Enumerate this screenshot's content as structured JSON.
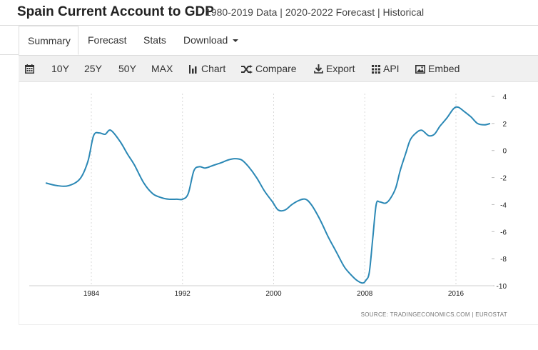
{
  "header": {
    "title": "Spain Current Account to GDP",
    "subtitle": "1980-2019 Data | 2020-2022 Forecast | Historical"
  },
  "tabs": [
    {
      "label": "Summary",
      "active": true
    },
    {
      "label": "Forecast"
    },
    {
      "label": "Stats"
    },
    {
      "label": "Download"
    }
  ],
  "toolbar": {
    "calendar_icon": "calendar-icon",
    "range_10y": "10Y",
    "range_25y": "25Y",
    "range_50y": "50Y",
    "range_max": "MAX",
    "chart": "Chart",
    "compare": "Compare",
    "export": "Export",
    "api": "API",
    "embed": "Embed"
  },
  "source_text": "SOURCE: TRADINGECONOMICS.COM  |  EUROSTAT",
  "colors": {
    "line": "#2b88b5",
    "grid": "#d8d8d8",
    "toolbar_bg": "#f0f0f0"
  },
  "chart_data": {
    "type": "line",
    "title": "",
    "xlabel": "",
    "ylabel": "",
    "x_ticks": [
      "1984",
      "1992",
      "2000",
      "2008",
      "2016"
    ],
    "y_ticks": [
      "4",
      "2",
      "0",
      "-2",
      "-4",
      "-6",
      "-8",
      "-10"
    ],
    "xlim": [
      1980,
      2019.5
    ],
    "ylim": [
      -10,
      4
    ],
    "y_axis_position": "right",
    "grid": "vertical dotted",
    "series": [
      {
        "x": [
          1980.0,
          1981.0,
          1982.0,
          1983.0,
          1983.7,
          1984.2,
          1984.7,
          1985.2,
          1985.7,
          1986.5,
          1987.2,
          1987.8,
          1988.6,
          1989.4,
          1990.2,
          1990.8,
          1991.5,
          1992.0,
          1992.5,
          1993.0,
          1993.5,
          1994.0,
          1994.7,
          1995.4,
          1996.0,
          1996.6,
          1997.2,
          1997.8,
          1998.5,
          1999.2,
          1999.9,
          2000.4,
          2001.0,
          2001.6,
          2002.2,
          2002.8,
          2003.3,
          2004.0,
          2004.8,
          2005.5,
          2006.2,
          2006.8,
          2007.3,
          2007.8,
          2008.1,
          2008.4,
          2008.7,
          2009.0,
          2009.3,
          2009.8,
          2010.2,
          2010.7,
          2011.1,
          2011.6,
          2012.0,
          2012.5,
          2013.0,
          2013.6,
          2014.1,
          2014.6,
          2015.2,
          2015.8,
          2016.2,
          2016.7,
          2017.3,
          2017.9,
          2018.5,
          2019.0
        ],
        "values": [
          -2.4,
          -2.6,
          -2.6,
          -2.1,
          -0.8,
          1.1,
          1.3,
          1.2,
          1.5,
          0.7,
          -0.3,
          -1.1,
          -2.4,
          -3.2,
          -3.5,
          -3.6,
          -3.6,
          -3.6,
          -3.2,
          -1.5,
          -1.2,
          -1.3,
          -1.1,
          -0.9,
          -0.7,
          -0.6,
          -0.7,
          -1.2,
          -2.0,
          -3.0,
          -3.8,
          -4.4,
          -4.4,
          -4.0,
          -3.7,
          -3.6,
          -4.0,
          -5.0,
          -6.4,
          -7.5,
          -8.6,
          -9.2,
          -9.6,
          -9.8,
          -9.6,
          -9.0,
          -6.5,
          -4.0,
          -3.8,
          -3.9,
          -3.6,
          -2.8,
          -1.5,
          -0.2,
          0.8,
          1.3,
          1.5,
          1.1,
          1.2,
          1.8,
          2.4,
          3.1,
          3.2,
          2.9,
          2.5,
          2.0,
          1.9,
          2.0
        ]
      }
    ],
    "source": "SOURCE: TRADINGECONOMICS.COM  |  EUROSTAT"
  }
}
